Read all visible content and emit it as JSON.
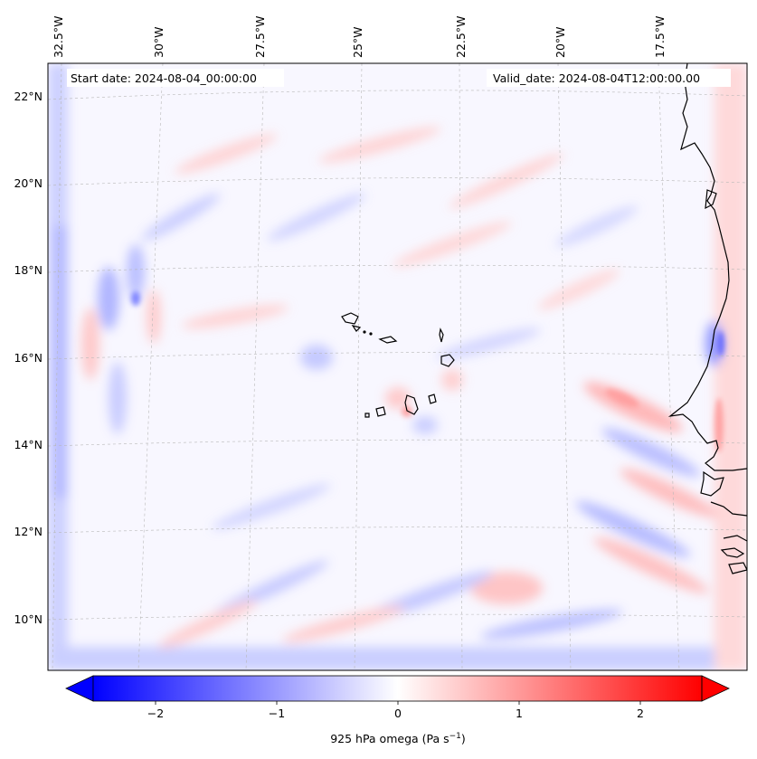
{
  "header": {
    "start_date": "Start date: 2024-08-04_00:00:00",
    "valid_date": "Valid_date: 2024-08-04T12:00:00.00"
  },
  "map": {
    "region": "Cape Verde / West African coast",
    "lon_labels": [
      "32.5°W",
      "30°W",
      "27.5°W",
      "25°W",
      "22.5°W",
      "20°W",
      "17.5°W"
    ],
    "lat_labels": [
      "22°N",
      "20°N",
      "18°N",
      "16°N",
      "14°N",
      "12°N",
      "10°N"
    ],
    "gridlines": "dashed, light gray",
    "coastline_color": "#000000"
  },
  "colorbar": {
    "label_main": "925 hPa omega (Pa s",
    "label_exp": "−1",
    "label_tail": ")",
    "ticks": [
      "−2",
      "−1",
      "0",
      "1",
      "2"
    ],
    "range": [
      -2.7,
      2.7
    ],
    "extend": "both",
    "colormap": "bwr",
    "colors": {
      "neg": "#0000ff",
      "mid": "#ffffff",
      "pos": "#ff0000"
    }
  }
}
